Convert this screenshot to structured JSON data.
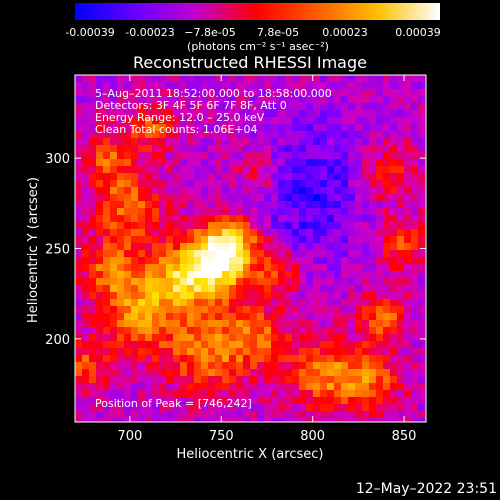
{
  "chart_data": {
    "type": "heatmap",
    "title": "Reconstructed RHESSI Image",
    "colorbar": {
      "ticks": [
        "-0.00039",
        "-0.00023",
        "−7.8e-05",
        "7.8e-05",
        "0.00023",
        "0.00039"
      ],
      "range": [
        -0.00039,
        0.00039
      ],
      "units_label": "(photons cm⁻² s⁻¹ asec⁻²)",
      "colormap": [
        "#0000ff",
        "#8000ff",
        "#d000c0",
        "#ff0000",
        "#ff8000",
        "#ffe000",
        "#ffffff"
      ]
    },
    "info_lines": [
      "5–Aug–2011 18:52:00.000 to 18:58:00.000",
      "Detectors: 3F 4F 5F 6F 7F 8F, Att 0",
      "Energy Range: 12.0 – 25.0 keV",
      "Clean     Total counts: 1.06E+04"
    ],
    "peak_label": "Position of Peak = [746,242]",
    "xlabel": "Heliocentric X (arcsec)",
    "ylabel": "Heliocentric Y (arcsec)",
    "xlim": [
      670,
      862
    ],
    "ylim": [
      154,
      346
    ],
    "x_ticks": [
      "700",
      "750",
      "800",
      "850"
    ],
    "y_ticks": [
      "200",
      "250",
      "300"
    ],
    "x_tick_values": [
      700,
      750,
      800,
      850
    ],
    "y_tick_values": [
      200,
      250,
      300
    ],
    "grid": false,
    "timestamp": "12–May–2022 23:51"
  }
}
